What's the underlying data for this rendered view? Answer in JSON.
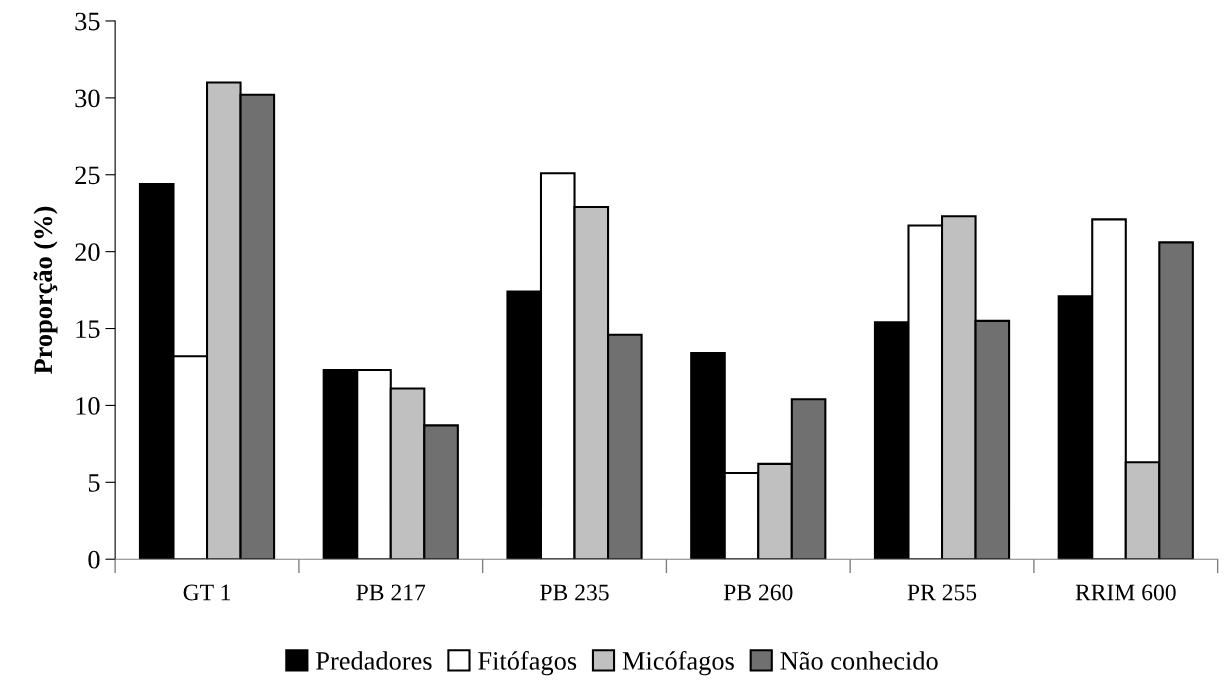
{
  "chart_data": {
    "type": "bar",
    "ylabel": "Proporção (%)",
    "categories": [
      "GT 1",
      "PB 217",
      "PB 235",
      "PB 260",
      "PR 255",
      "RRIM 600"
    ],
    "series": [
      {
        "name": "Predadores",
        "color": "#000000",
        "values": [
          24.4,
          12.3,
          17.4,
          13.4,
          15.4,
          17.1
        ]
      },
      {
        "name": "Fitófagos",
        "color": "#ffffff",
        "values": [
          13.2,
          12.3,
          25.1,
          5.6,
          21.7,
          22.1
        ]
      },
      {
        "name": "Micófagos",
        "color": "#c0c0c0",
        "values": [
          31.0,
          11.1,
          22.9,
          6.2,
          22.3,
          6.3
        ]
      },
      {
        "name": "Não conhecido",
        "color": "#707070",
        "values": [
          30.2,
          8.7,
          14.6,
          10.4,
          15.5,
          20.6
        ]
      }
    ],
    "ylim": [
      0,
      35
    ],
    "yticks": [
      0,
      5,
      10,
      15,
      20,
      25,
      30,
      35
    ],
    "grid": false,
    "legend": "bottom"
  }
}
